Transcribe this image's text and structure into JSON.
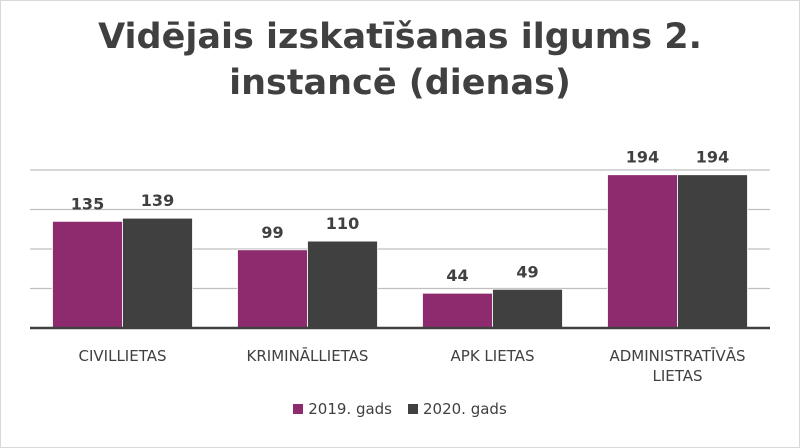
{
  "chart_data": {
    "type": "bar",
    "title_lines": [
      "Vidējais izskatīšanas ilgums 2.",
      "instancē (dienas)"
    ],
    "categories": [
      [
        "CIVILLIETAS"
      ],
      [
        "KRIMINĀLLIETAS"
      ],
      [
        "APK LIETAS"
      ],
      [
        "ADMINISTRATĪVĀS",
        "LIETAS"
      ]
    ],
    "series": [
      {
        "name": "2019. gads",
        "values": [
          135,
          99,
          44,
          194
        ],
        "color": "#8e2a6e"
      },
      {
        "name": "2020. gads",
        "values": [
          139,
          110,
          49,
          194
        ],
        "color": "#404040"
      }
    ],
    "ylim": [
      0,
      200
    ],
    "y_gridline_step": 50,
    "y_axis_labels": false,
    "data_labels": true,
    "grid": true,
    "legend_position": "bottom"
  }
}
